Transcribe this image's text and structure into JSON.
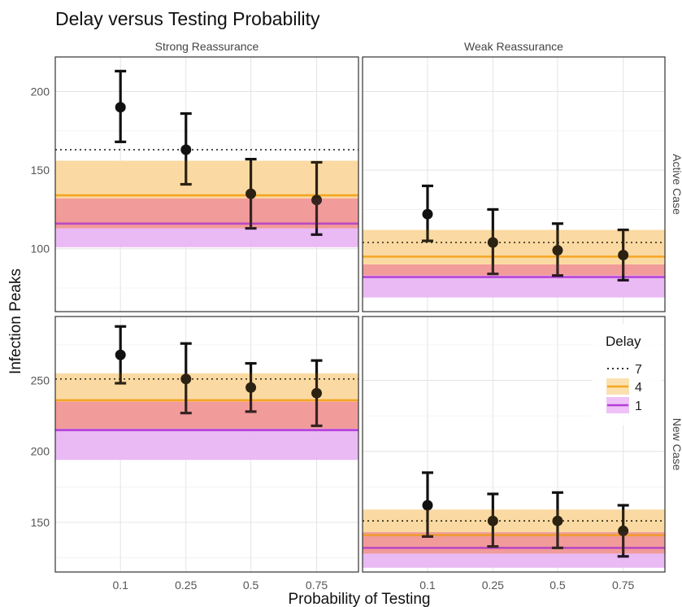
{
  "chart_data": {
    "type": "scatter",
    "title": "Delay versus Testing Probability",
    "xlabel": "Probability of Testing",
    "ylabel": "Infection Peaks",
    "x_categories": [
      "0.1",
      "0.25",
      "0.5",
      "0.75"
    ],
    "columns": [
      "Strong Reassurance",
      "Weak Reassurance"
    ],
    "rows": [
      "Active Case",
      "New Case"
    ],
    "rows_ylim": [
      [
        60,
        222
      ],
      [
        115,
        295
      ]
    ],
    "rows_yticks": [
      [
        100,
        150,
        200
      ],
      [
        150,
        200,
        250
      ]
    ],
    "legend": {
      "title": "Delay",
      "placement": "right",
      "entries": [
        {
          "label": "7",
          "color": "#111111",
          "style": "dotted"
        },
        {
          "label": "4",
          "color": "#f5a623",
          "fill": "#fbe0b0",
          "style": "solid"
        },
        {
          "label": "1",
          "color": "#b43ed8",
          "fill": "#eec2f7",
          "style": "solid"
        }
      ]
    },
    "colors": {
      "delay7": "#111111",
      "delay4": "#f5a623",
      "delay1": "#b43ed8",
      "band_red": "#f7a1a1"
    },
    "panels": [
      {
        "row": 0,
        "col": 0,
        "baselines": {
          "delay7": 163,
          "delay4": 134,
          "delay4_band": [
            113,
            156
          ],
          "delay1": 116,
          "delay1_band": [
            101,
            132
          ]
        },
        "points": [
          {
            "x": "0.1",
            "y": 190,
            "low": 168,
            "high": 213
          },
          {
            "x": "0.25",
            "y": 163,
            "low": 141,
            "high": 186
          },
          {
            "x": "0.5",
            "y": 135,
            "low": 113,
            "high": 157
          },
          {
            "x": "0.75",
            "y": 131,
            "low": 109,
            "high": 155
          }
        ]
      },
      {
        "row": 0,
        "col": 1,
        "baselines": {
          "delay7": 104,
          "delay4": 95,
          "delay4_band": [
            83,
            112
          ],
          "delay1": 82,
          "delay1_band": [
            69,
            90
          ]
        },
        "points": [
          {
            "x": "0.1",
            "y": 122,
            "low": 105,
            "high": 140
          },
          {
            "x": "0.25",
            "y": 104,
            "low": 84,
            "high": 125
          },
          {
            "x": "0.5",
            "y": 99,
            "low": 83,
            "high": 116
          },
          {
            "x": "0.75",
            "y": 96,
            "low": 80,
            "high": 112
          }
        ]
      },
      {
        "row": 1,
        "col": 0,
        "baselines": {
          "delay7": 251,
          "delay4": 236,
          "delay4_band": [
            216,
            255
          ],
          "delay1": 215,
          "delay1_band": [
            194,
            235
          ]
        },
        "points": [
          {
            "x": "0.1",
            "y": 268,
            "low": 248,
            "high": 288
          },
          {
            "x": "0.25",
            "y": 251,
            "low": 227,
            "high": 276
          },
          {
            "x": "0.5",
            "y": 245,
            "low": 228,
            "high": 262
          },
          {
            "x": "0.75",
            "y": 241,
            "low": 218,
            "high": 264
          }
        ]
      },
      {
        "row": 1,
        "col": 1,
        "baselines": {
          "delay7": 151,
          "delay4": 141,
          "delay4_band": [
            128,
            159
          ],
          "delay1": 132,
          "delay1_band": [
            118,
            143
          ]
        },
        "points": [
          {
            "x": "0.1",
            "y": 162,
            "low": 140,
            "high": 185
          },
          {
            "x": "0.25",
            "y": 151,
            "low": 133,
            "high": 170
          },
          {
            "x": "0.5",
            "y": 151,
            "low": 132,
            "high": 171
          },
          {
            "x": "0.75",
            "y": 144,
            "low": 126,
            "high": 162
          }
        ]
      }
    ]
  }
}
